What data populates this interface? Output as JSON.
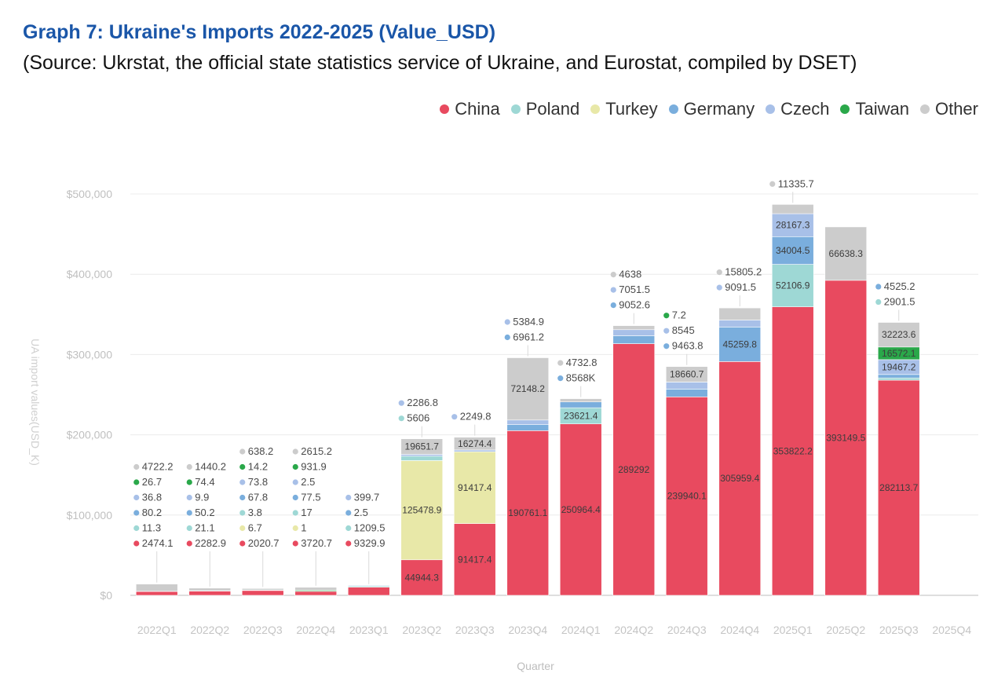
{
  "header": {
    "title": "Graph 7: Ukraine's Imports 2022-2025 (Value_USD)",
    "subtitle": "(Source: Ukrstat, the official state statistics service of Ukraine, and Eurostat, compiled by DSET)"
  },
  "chart_data": {
    "type": "bar",
    "stacked": true,
    "title": "Graph 7: Ukraine's Imports 2022-2025 (Value_USD)",
    "xlabel": "Quarter",
    "ylabel": "UA import values(USD_K)",
    "ylim": [
      0,
      500000
    ],
    "yticks": [
      "$0",
      "$100,000",
      "$200,000",
      "$300,000",
      "$400,000",
      "$500,000"
    ],
    "grid": true,
    "legend_position": "top-right",
    "categories": [
      "2022Q1",
      "2022Q2",
      "2022Q3",
      "2022Q4",
      "2023Q1",
      "2023Q2",
      "2023Q3",
      "2023Q4",
      "2024Q1",
      "2024Q2",
      "2024Q3",
      "2024Q4",
      "2025Q1",
      "2025Q2",
      "2025Q3",
      "2025Q4"
    ],
    "series": [
      {
        "name": "China",
        "color": "#e84a5f",
        "values": [
          2474.1,
          2282.9,
          2020.7,
          3720.7,
          9329.9,
          44944.3,
          91417.4,
          190761.1,
          250964.4,
          289292,
          239940.1,
          305959.4,
          353822.2,
          393149.5,
          282113.7,
          null
        ],
        "labels": [
          "2474.1",
          "2282.9",
          "2020.7",
          "3720.7",
          "9329.9",
          "44944.3",
          "91417.4",
          "190761.1",
          "250964.4",
          "289292",
          "239940.1",
          "305959.4",
          "353822.2",
          "393149.5",
          "282113.7",
          ""
        ]
      },
      {
        "name": "Poland",
        "color": "#9ed8d5",
        "values": [
          11.3,
          21.1,
          3.8,
          17,
          1209.5,
          5606,
          null,
          null,
          23621.4,
          null,
          null,
          null,
          52106.9,
          null,
          2901.5,
          null
        ],
        "labels": [
          "11.3",
          "21.1",
          "3.8",
          "17",
          "1209.5",
          "5606",
          "",
          "",
          "23621.4",
          "",
          "",
          "",
          "52106.9",
          "",
          "2901.5",
          ""
        ]
      },
      {
        "name": "Turkey",
        "color": "#e8e8a8",
        "values": [
          null,
          null,
          6.7,
          1,
          null,
          125478.9,
          91417.4,
          null,
          null,
          null,
          null,
          null,
          null,
          null,
          null,
          null
        ],
        "labels": [
          "",
          "",
          "6.7",
          "1",
          "",
          "125478.9",
          "91417.4",
          "",
          "",
          "",
          "",
          "",
          "",
          "",
          "",
          ""
        ]
      },
      {
        "name": "Germany",
        "color": "#7aaedd",
        "values": [
          80.2,
          50.2,
          67.8,
          77.5,
          2.5,
          null,
          null,
          6961.2,
          8568,
          9052.6,
          9463.8,
          45259.8,
          34004.5,
          null,
          4525.2,
          null
        ],
        "labels": [
          "80.2",
          "50.2",
          "67.8",
          "77.5",
          "2.5",
          "",
          "",
          "6961.2",
          "8568K",
          "9052.6",
          "9463.8",
          "45259.8",
          "34004.5",
          "",
          "4525.2",
          ""
        ]
      },
      {
        "name": "Czech",
        "color": "#a8c0e8",
        "values": [
          36.8,
          9.9,
          73.8,
          2.5,
          399.7,
          2286.8,
          2249.8,
          5384.9,
          null,
          7051.5,
          8545,
          9091.5,
          28167.3,
          null,
          19467.2,
          null
        ],
        "labels": [
          "36.8",
          "9.9",
          "73.8",
          "2.5",
          "399.7",
          "2286.8",
          "2249.8",
          "5384.9",
          "",
          "7051.5",
          "8545",
          "9091.5",
          "28167.3",
          "",
          "19467.2",
          ""
        ]
      },
      {
        "name": "Taiwan",
        "color": "#2aa84a",
        "values": [
          26.7,
          74.4,
          14.2,
          931.9,
          null,
          null,
          null,
          null,
          null,
          null,
          7.2,
          null,
          null,
          null,
          16572.1,
          null
        ],
        "labels": [
          "26.7",
          "74.4",
          "14.2",
          "931.9",
          "",
          "",
          "",
          "",
          "",
          "",
          "7.2",
          "",
          "",
          "",
          "16572.1",
          ""
        ]
      },
      {
        "name": "Other",
        "color": "#cccccc",
        "values": [
          4722.2,
          1440.2,
          638.2,
          2615.2,
          null,
          19651.7,
          16274.4,
          72148.2,
          4732.8,
          4638,
          18660.7,
          15805.2,
          11335.7,
          66638.3,
          32223.6,
          null
        ],
        "labels": [
          "4722.2",
          "1440.2",
          "638.2",
          "2615.2",
          "",
          "19651.7",
          "16274.4",
          "72148.2",
          "4732.8",
          "4638",
          "18660.7",
          "15805.2",
          "11335.7",
          "66638.3",
          "32223.6",
          ""
        ]
      }
    ],
    "totals_estimated": [
      14000,
      9000,
      8500,
      10000,
      12000,
      195000,
      197000,
      296000,
      245000,
      336000,
      285000,
      358000,
      487000,
      459000,
      340000,
      0
    ]
  }
}
